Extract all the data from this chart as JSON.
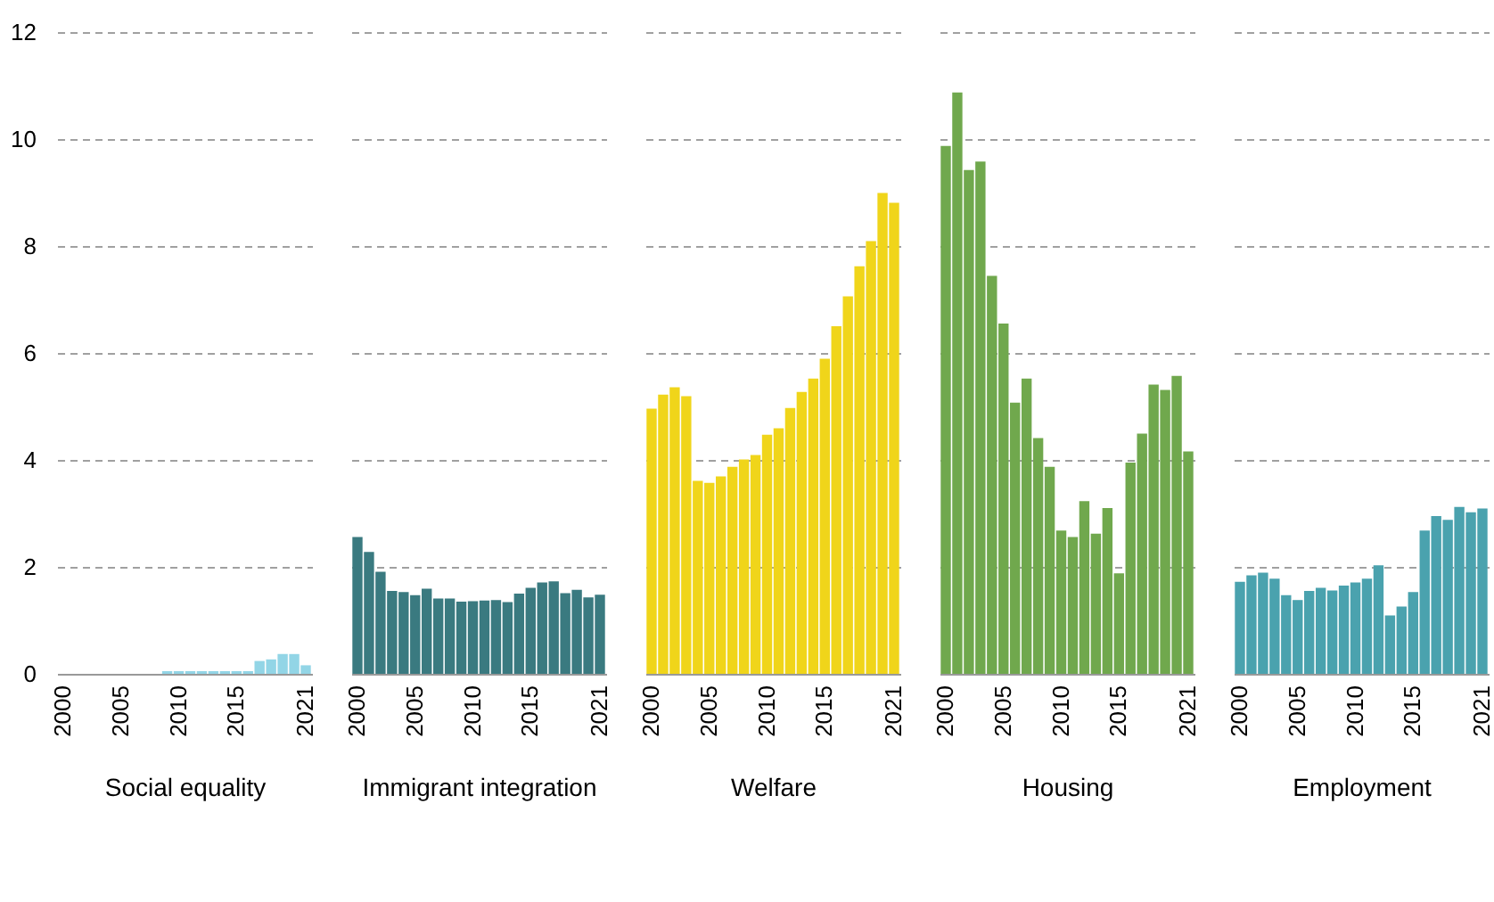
{
  "chart_data": [
    {
      "type": "bar",
      "xlabel": "Social equality",
      "categories": [
        "2000",
        null,
        null,
        null,
        null,
        "2005",
        null,
        null,
        null,
        null,
        "2010",
        null,
        null,
        null,
        null,
        "2015",
        null,
        null,
        null,
        null,
        null,
        "2021"
      ],
      "color": "#92d5e6",
      "values": [
        null,
        null,
        null,
        null,
        null,
        null,
        null,
        null,
        null,
        0.05,
        0.05,
        0.05,
        0.05,
        0.05,
        0.05,
        0.05,
        0.05,
        0.24,
        0.27,
        0.37,
        0.37,
        0.16
      ],
      "ylim": [
        0,
        12
      ],
      "yticks": [
        0,
        2,
        4,
        6,
        8,
        10,
        12
      ],
      "grid": "y"
    },
    {
      "type": "bar",
      "xlabel": "Immigrant integration",
      "categories": [
        "2000",
        null,
        null,
        null,
        null,
        "2005",
        null,
        null,
        null,
        null,
        "2010",
        null,
        null,
        null,
        null,
        "2015",
        null,
        null,
        null,
        null,
        null,
        "2021"
      ],
      "color": "#3a7a80",
      "values": [
        2.56,
        2.28,
        1.91,
        1.55,
        1.53,
        1.47,
        1.59,
        1.41,
        1.41,
        1.35,
        1.36,
        1.37,
        1.38,
        1.34,
        1.5,
        1.61,
        1.71,
        1.73,
        1.51,
        1.57,
        1.43,
        1.48
      ],
      "ylim": [
        0,
        12
      ],
      "yticks": [
        0,
        2,
        4,
        6,
        8,
        10,
        12
      ],
      "grid": "y",
      "tick_labels": "x"
    },
    {
      "type": "bar",
      "xlabel": "Welfare",
      "categories": [
        "2000",
        null,
        null,
        null,
        null,
        "2005",
        null,
        null,
        null,
        null,
        "2010",
        null,
        null,
        null,
        null,
        "2015",
        null,
        null,
        null,
        null,
        null,
        "2021"
      ],
      "color": "#f0d51a",
      "values": [
        4.96,
        5.22,
        5.36,
        5.19,
        3.61,
        3.57,
        3.69,
        3.87,
        4.01,
        4.09,
        4.47,
        4.59,
        4.97,
        5.27,
        5.52,
        5.89,
        6.5,
        7.06,
        7.62,
        8.09,
        8.99,
        8.81
      ],
      "ylim": [
        0,
        12
      ],
      "yticks": [
        0,
        2,
        4,
        6,
        8,
        10,
        12
      ],
      "grid": "y",
      "tick_labels": "x"
    },
    {
      "type": "bar",
      "xlabel": "Housing",
      "categories": [
        "2000",
        null,
        null,
        null,
        null,
        "2005",
        null,
        null,
        null,
        null,
        "2010",
        null,
        null,
        null,
        null,
        "2015",
        null,
        null,
        null,
        null,
        null,
        "2021"
      ],
      "color": "#70a84d",
      "values": [
        9.87,
        10.87,
        9.42,
        9.58,
        7.44,
        6.55,
        5.07,
        5.52,
        4.41,
        3.87,
        2.68,
        2.56,
        3.23,
        2.62,
        3.1,
        1.88,
        3.95,
        4.49,
        5.41,
        5.31,
        5.57,
        4.16
      ],
      "ylim": [
        0,
        12
      ],
      "yticks": [
        0,
        2,
        4,
        6,
        8,
        10,
        12
      ],
      "grid": "y",
      "tick_labels": "x"
    },
    {
      "type": "bar",
      "xlabel": "Employment",
      "categories": [
        "2000",
        null,
        null,
        null,
        null,
        "2005",
        null,
        null,
        null,
        null,
        "2010",
        null,
        null,
        null,
        null,
        "2015",
        null,
        null,
        null,
        null,
        null,
        "2021"
      ],
      "color": "#4aa2ae",
      "values": [
        1.72,
        1.84,
        1.89,
        1.78,
        1.47,
        1.38,
        1.55,
        1.61,
        1.56,
        1.65,
        1.71,
        1.78,
        2.03,
        1.09,
        1.26,
        1.53,
        2.68,
        2.95,
        2.88,
        3.12,
        3.02,
        3.09
      ],
      "ylim": [
        0,
        12
      ],
      "yticks": [
        0,
        2,
        4,
        6,
        8,
        10,
        12
      ],
      "grid": "y",
      "tick_labels": "x"
    }
  ]
}
